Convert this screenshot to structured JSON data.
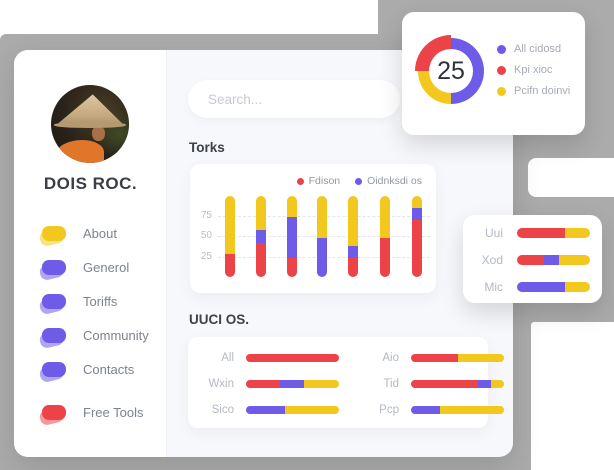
{
  "palette": {
    "red": "#ec4349",
    "yellow": "#f2c81e",
    "purple": "#6e5be8",
    "gray_background": "#ababab",
    "card_background": "#ffffff",
    "dashboard_background": "#f7f8fb",
    "text_dark": "#3d4148",
    "text_gray": "#7d838e"
  },
  "sidebar": {
    "profile_name": "DOIS ROC.",
    "items": [
      {
        "label": "About",
        "color_key": "yellow"
      },
      {
        "label": "Generol",
        "color_key": "purple"
      },
      {
        "label": "Toriffs",
        "color_key": "purple"
      },
      {
        "label": "Community",
        "color_key": "purple"
      },
      {
        "label": "Contacts",
        "color_key": "purple"
      }
    ],
    "free_tools": {
      "label": "Free Tools",
      "color_key": "red"
    }
  },
  "search": {
    "placeholder": "Search..."
  },
  "sections": {
    "torks_title": "Torks",
    "uuci_title": "UUCI OS."
  },
  "donut_card": {
    "center_value": "25"
  },
  "chart_data": [
    {
      "id": "donut",
      "type": "pie",
      "subtype": "donut",
      "center_label": "25",
      "legend_position": "right",
      "slices": [
        {
          "label": "All cidosd",
          "color_key": "purple",
          "value_pct": 50,
          "start_pct": 0
        },
        {
          "label": "Kpi xioc",
          "color_key": "red",
          "value_pct": 25,
          "start_pct": 75,
          "highlighted": true
        },
        {
          "label": "Pcifn doinvi",
          "color_key": "yellow",
          "value_pct": 25,
          "start_pct": 50
        }
      ]
    },
    {
      "id": "torks",
      "type": "bar",
      "title": "Torks",
      "orientation": "vertical",
      "stacked": true,
      "grid": "dashed-horizontal",
      "yticks": [
        75,
        50,
        25
      ],
      "ylim": [
        0,
        105
      ],
      "legend": [
        {
          "name": "Fdison",
          "color_key": "red"
        },
        {
          "name": "Oidnksdi os",
          "color_key": "purple"
        }
      ],
      "bars": [
        {
          "stack": [
            [
              "red",
              29
            ],
            [
              "yellow",
              71
            ]
          ]
        },
        {
          "stack": [
            [
              "red",
              42
            ],
            [
              "purple",
              16
            ],
            [
              "yellow",
              42
            ]
          ]
        },
        {
          "stack": [
            [
              "red",
              24
            ],
            [
              "purple",
              50
            ],
            [
              "yellow",
              26
            ]
          ]
        },
        {
          "stack": [
            [
              "purple",
              48
            ],
            [
              "yellow",
              52
            ]
          ]
        },
        {
          "stack": [
            [
              "red",
              24
            ],
            [
              "purple",
              14
            ],
            [
              "yellow",
              62
            ]
          ]
        },
        {
          "stack": [
            [
              "red",
              48
            ],
            [
              "yellow",
              52
            ]
          ]
        },
        {
          "stack": [
            [
              "red",
              71
            ],
            [
              "purple",
              14
            ],
            [
              "yellow",
              15
            ]
          ]
        }
      ]
    },
    {
      "id": "uuci",
      "type": "bar",
      "title": "UUCI OS.",
      "orientation": "horizontal",
      "stacked": true,
      "unit": "percent",
      "columns": [
        [
          {
            "label": "All",
            "stack": [
              [
                "red",
                100
              ]
            ]
          },
          {
            "label": "Wxin",
            "stack": [
              [
                "red",
                37
              ],
              [
                "purple",
                25
              ],
              [
                "yellow",
                38
              ]
            ]
          },
          {
            "label": "Sico",
            "stack": [
              [
                "purple",
                42
              ],
              [
                "yellow",
                58
              ]
            ]
          }
        ],
        [
          {
            "label": "Aio",
            "stack": [
              [
                "red",
                50
              ],
              [
                "yellow",
                50
              ]
            ]
          },
          {
            "label": "Tid",
            "stack": [
              [
                "red",
                72
              ],
              [
                "purple",
                14
              ],
              [
                "yellow",
                14
              ]
            ]
          },
          {
            "label": "Pcp",
            "stack": [
              [
                "purple",
                31
              ],
              [
                "yellow",
                69
              ]
            ]
          }
        ]
      ]
    },
    {
      "id": "mini",
      "type": "bar",
      "orientation": "horizontal",
      "stacked": true,
      "unit": "percent",
      "rows": [
        {
          "label": "Uui",
          "stack": [
            [
              "red",
              66
            ],
            [
              "yellow",
              34
            ]
          ]
        },
        {
          "label": "Xod",
          "stack": [
            [
              "red",
              37
            ],
            [
              "purple",
              20
            ],
            [
              "yellow",
              43
            ]
          ]
        },
        {
          "label": "Mic",
          "stack": [
            [
              "purple",
              66
            ],
            [
              "yellow",
              34
            ]
          ]
        }
      ]
    }
  ]
}
